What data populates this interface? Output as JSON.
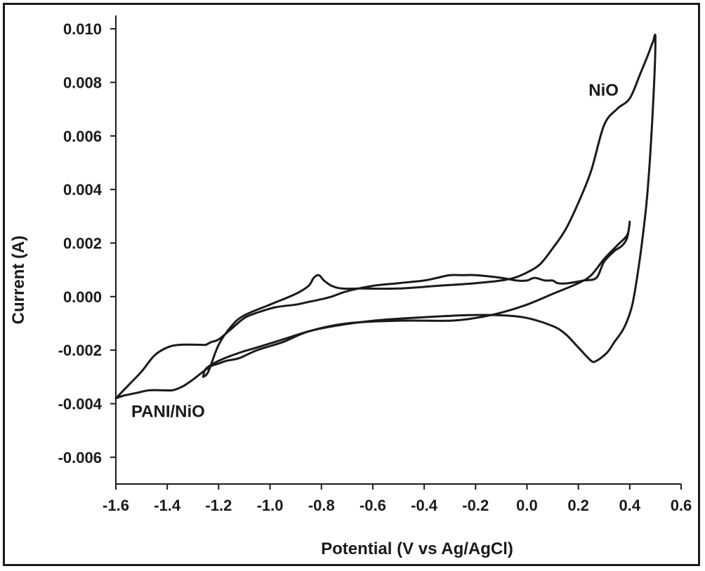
{
  "chart_data": {
    "type": "line",
    "xlabel": "Potential (V vs Ag/AgCl)",
    "ylabel": "Current (A)",
    "xlim": [
      -1.6,
      0.6
    ],
    "ylim": [
      -0.007,
      0.0105
    ],
    "xticks": [
      -1.6,
      -1.4,
      -1.2,
      -1.0,
      -0.8,
      -0.6,
      -0.4,
      -0.2,
      0.0,
      0.2,
      0.4,
      0.6
    ],
    "xtick_labels": [
      "-1.6",
      "-1.4",
      "-1.2",
      "-1.0",
      "-0.8",
      "-0.6",
      "-0.4",
      "-0.2",
      "0.0",
      "0.2",
      "0.4",
      "0.6"
    ],
    "yticks": [
      -0.006,
      -0.004,
      -0.002,
      0.0,
      0.002,
      0.004,
      0.006,
      0.008,
      0.01
    ],
    "ytick_labels": [
      "-0.006",
      "-0.004",
      "-0.002",
      "0.000",
      "0.002",
      "0.004",
      "0.006",
      "0.008",
      "0.010"
    ],
    "grid": false,
    "legend": "none",
    "line_color": "#1a1a1a",
    "annotations": [
      {
        "text": "NiO",
        "x": 0.24,
        "y": 0.0075
      },
      {
        "text": "PANI/NiO",
        "x": -1.54,
        "y": -0.0045
      }
    ],
    "series": [
      {
        "x": [
          -1.26,
          -1.24,
          -1.2,
          -1.15,
          -1.1,
          -1.0,
          -0.9,
          -0.85,
          -0.83,
          -0.81,
          -0.79,
          -0.76,
          -0.72,
          -0.65,
          -0.5,
          -0.35,
          -0.2,
          -0.1,
          -0.05,
          0.0,
          0.05,
          0.1,
          0.15,
          0.2,
          0.25,
          0.3,
          0.35,
          0.4,
          0.44,
          0.47,
          0.49,
          0.5,
          0.49,
          0.47,
          0.45,
          0.43,
          0.41,
          0.39,
          0.37,
          0.34,
          0.32,
          0.3,
          0.27,
          0.25,
          0.2,
          0.15,
          0.1,
          0.0,
          -0.1,
          -0.25,
          -0.45,
          -0.6,
          -0.75,
          -0.85,
          -0.95,
          -1.05,
          -1.12,
          -1.2,
          -1.25,
          -1.26
        ],
        "y": [
          -0.003,
          -0.0028,
          -0.0018,
          -0.0011,
          -0.0007,
          -0.0003,
          0.0001,
          0.0004,
          0.0007,
          0.0008,
          0.0006,
          0.0004,
          0.0003,
          0.0003,
          0.0003,
          0.0004,
          0.0005,
          0.0006,
          0.0007,
          0.0009,
          0.0012,
          0.0018,
          0.0025,
          0.0035,
          0.0047,
          0.0064,
          0.007,
          0.0074,
          0.0083,
          0.009,
          0.0095,
          0.0096,
          0.007,
          0.004,
          0.0022,
          0.0008,
          -0.0003,
          -0.0009,
          -0.0013,
          -0.0017,
          -0.002,
          -0.0022,
          -0.0024,
          -0.0024,
          -0.0019,
          -0.0014,
          -0.0011,
          -0.0008,
          -0.0007,
          -0.0007,
          -0.0008,
          -0.0009,
          -0.0011,
          -0.0013,
          -0.0016,
          -0.0019,
          -0.0021,
          -0.0024,
          -0.0027,
          -0.003
        ]
      },
      {
        "x": [
          -1.6,
          -1.57,
          -1.52,
          -1.47,
          -1.42,
          -1.38,
          -1.35,
          -1.33,
          -1.3,
          -1.26,
          -1.23,
          -1.2,
          -1.17,
          -1.12,
          -1.05,
          -0.95,
          -0.85,
          -0.7,
          -0.5,
          -0.3,
          -0.2,
          -0.1,
          0.0,
          0.1,
          0.2,
          0.25,
          0.3,
          0.35,
          0.39,
          0.4,
          0.39,
          0.37,
          0.34,
          0.3,
          0.27,
          0.22,
          0.16,
          0.12,
          0.1,
          0.07,
          0.03,
          0.0,
          -0.04,
          -0.1,
          -0.2,
          -0.25,
          -0.3,
          -0.35,
          -0.4,
          -0.5,
          -0.6,
          -0.7,
          -0.76,
          -0.8,
          -0.85,
          -0.9,
          -0.98,
          -1.05,
          -1.1,
          -1.15,
          -1.2,
          -1.23,
          -1.25,
          -1.27,
          -1.35,
          -1.4,
          -1.45,
          -1.5,
          -1.55,
          -1.6
        ],
        "y": [
          -0.0038,
          -0.0037,
          -0.0036,
          -0.0035,
          -0.0035,
          -0.0035,
          -0.0034,
          -0.0033,
          -0.0031,
          -0.0028,
          -0.0026,
          -0.0025,
          -0.0024,
          -0.0023,
          -0.002,
          -0.0017,
          -0.0013,
          -0.001,
          -0.0009,
          -0.0009,
          -0.0008,
          -0.0006,
          -0.0003,
          0.0001,
          0.0005,
          0.0008,
          0.0014,
          0.0019,
          0.0023,
          0.0028,
          0.0022,
          0.0019,
          0.0017,
          0.0013,
          0.0007,
          0.0006,
          0.0005,
          0.0005,
          0.0006,
          0.0006,
          0.0007,
          0.0006,
          0.0006,
          0.0007,
          0.0008,
          0.0008,
          0.0008,
          0.0007,
          0.0006,
          0.0005,
          0.0004,
          0.0002,
          0.0,
          -0.0001,
          -0.0002,
          -0.0003,
          -0.0004,
          -0.0006,
          -0.0008,
          -0.0012,
          -0.0016,
          -0.0017,
          -0.0018,
          -0.0018,
          -0.0018,
          -0.0019,
          -0.0022,
          -0.0028,
          -0.0033,
          -0.0038
        ]
      }
    ]
  }
}
